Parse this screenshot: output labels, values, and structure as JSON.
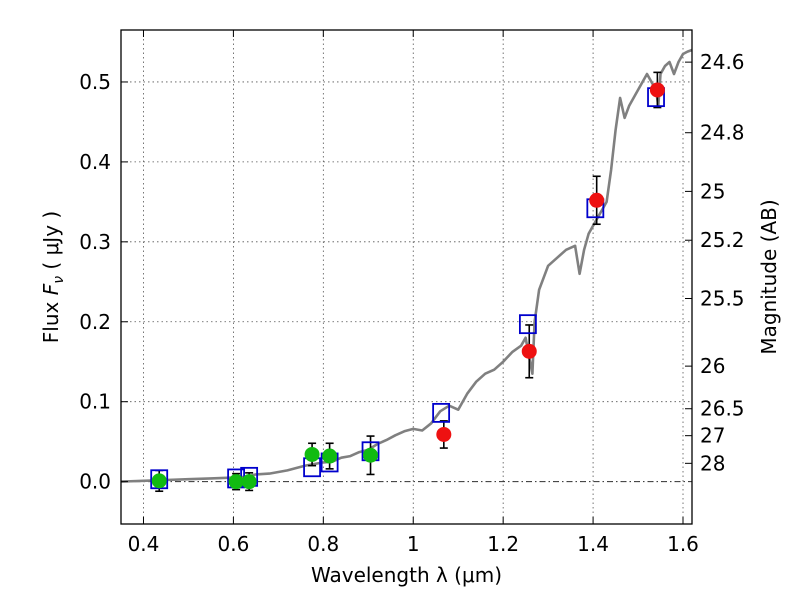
{
  "chart_data": {
    "type": "scatter",
    "xlabel": "Wavelength  λ (μm)",
    "ylabel": "Flux  F_ν  ( μJy )",
    "ylabel_right": "Magnitude (AB)",
    "xlim": [
      0.35,
      1.62
    ],
    "ylim": [
      -0.053,
      0.565
    ],
    "x_ticks": [
      {
        "value": 0.4,
        "label": "0.4"
      },
      {
        "value": 0.6,
        "label": "0.6"
      },
      {
        "value": 0.8,
        "label": "0.8"
      },
      {
        "value": 1.0,
        "label": "1"
      },
      {
        "value": 1.2,
        "label": "1.2"
      },
      {
        "value": 1.4,
        "label": "1.4"
      },
      {
        "value": 1.6,
        "label": "1.6"
      }
    ],
    "y_ticks": [
      {
        "value": 0.0,
        "label": "0.0"
      },
      {
        "value": 0.1,
        "label": "0.1"
      },
      {
        "value": 0.2,
        "label": "0.2"
      },
      {
        "value": 0.3,
        "label": "0.3"
      },
      {
        "value": 0.4,
        "label": "0.4"
      },
      {
        "value": 0.5,
        "label": "0.5"
      }
    ],
    "mag_ticks": [
      {
        "label": "24.6",
        "flux": 0.5248
      },
      {
        "label": "24.8",
        "flux": 0.4365
      },
      {
        "label": "25",
        "flux": 0.3631
      },
      {
        "label": "25.2",
        "flux": 0.302
      },
      {
        "label": "25.5",
        "flux": 0.2291
      },
      {
        "label": "26",
        "flux": 0.1445
      },
      {
        "label": "26.5",
        "flux": 0.0912
      },
      {
        "label": "27",
        "flux": 0.0575
      },
      {
        "label": "28",
        "flux": 0.0229
      }
    ],
    "grid": true,
    "zero_line": true,
    "colors": {
      "model": "#808080",
      "square": "#0000cc",
      "green": "#11bb11",
      "red": "#ee1111",
      "errorbar": "#000000"
    },
    "model_spectrum": [
      [
        0.35,
        0.0
      ],
      [
        0.4,
        0.001
      ],
      [
        0.45,
        0.002
      ],
      [
        0.5,
        0.003
      ],
      [
        0.55,
        0.004
      ],
      [
        0.6,
        0.005
      ],
      [
        0.63,
        0.006
      ],
      [
        0.65,
        0.009
      ],
      [
        0.68,
        0.01
      ],
      [
        0.7,
        0.012
      ],
      [
        0.72,
        0.014
      ],
      [
        0.74,
        0.017
      ],
      [
        0.76,
        0.02
      ],
      [
        0.78,
        0.022
      ],
      [
        0.8,
        0.024
      ],
      [
        0.82,
        0.025
      ],
      [
        0.84,
        0.03
      ],
      [
        0.86,
        0.032
      ],
      [
        0.88,
        0.037
      ],
      [
        0.9,
        0.04
      ],
      [
        0.92,
        0.047
      ],
      [
        0.94,
        0.052
      ],
      [
        0.96,
        0.058
      ],
      [
        0.98,
        0.063
      ],
      [
        1.0,
        0.066
      ],
      [
        1.02,
        0.064
      ],
      [
        1.04,
        0.073
      ],
      [
        1.06,
        0.088
      ],
      [
        1.08,
        0.095
      ],
      [
        1.1,
        0.09
      ],
      [
        1.12,
        0.11
      ],
      [
        1.14,
        0.125
      ],
      [
        1.16,
        0.135
      ],
      [
        1.18,
        0.14
      ],
      [
        1.2,
        0.15
      ],
      [
        1.22,
        0.162
      ],
      [
        1.24,
        0.17
      ],
      [
        1.25,
        0.18
      ],
      [
        1.26,
        0.15
      ],
      [
        1.265,
        0.135
      ],
      [
        1.27,
        0.2
      ],
      [
        1.28,
        0.24
      ],
      [
        1.3,
        0.27
      ],
      [
        1.32,
        0.28
      ],
      [
        1.34,
        0.29
      ],
      [
        1.36,
        0.295
      ],
      [
        1.37,
        0.26
      ],
      [
        1.38,
        0.29
      ],
      [
        1.39,
        0.31
      ],
      [
        1.4,
        0.32
      ],
      [
        1.41,
        0.33
      ],
      [
        1.42,
        0.34
      ],
      [
        1.43,
        0.35
      ],
      [
        1.44,
        0.39
      ],
      [
        1.45,
        0.44
      ],
      [
        1.46,
        0.48
      ],
      [
        1.47,
        0.455
      ],
      [
        1.48,
        0.47
      ],
      [
        1.49,
        0.48
      ],
      [
        1.5,
        0.49
      ],
      [
        1.51,
        0.5
      ],
      [
        1.52,
        0.51
      ],
      [
        1.53,
        0.5
      ],
      [
        1.54,
        0.49
      ],
      [
        1.545,
        0.47
      ],
      [
        1.55,
        0.51
      ],
      [
        1.56,
        0.52
      ],
      [
        1.57,
        0.525
      ],
      [
        1.58,
        0.51
      ],
      [
        1.59,
        0.525
      ],
      [
        1.6,
        0.535
      ],
      [
        1.61,
        0.538
      ],
      [
        1.62,
        0.54
      ]
    ],
    "model_photometry": [
      {
        "x": 0.435,
        "y": 0.003
      },
      {
        "x": 0.606,
        "y": 0.004
      },
      {
        "x": 0.635,
        "y": 0.006
      },
      {
        "x": 0.775,
        "y": 0.018
      },
      {
        "x": 0.814,
        "y": 0.024
      },
      {
        "x": 0.905,
        "y": 0.038
      },
      {
        "x": 1.062,
        "y": 0.086
      },
      {
        "x": 1.255,
        "y": 0.197
      },
      {
        "x": 1.405,
        "y": 0.342
      },
      {
        "x": 1.54,
        "y": 0.481
      }
    ],
    "observed_green": [
      {
        "x": 0.435,
        "y": 0.001,
        "err": 0.013
      },
      {
        "x": 0.606,
        "y": 0.0,
        "err": 0.01
      },
      {
        "x": 0.635,
        "y": 0.0,
        "err": 0.011
      },
      {
        "x": 0.775,
        "y": 0.034,
        "err": 0.014
      },
      {
        "x": 0.814,
        "y": 0.032,
        "err": 0.016
      },
      {
        "x": 0.905,
        "y": 0.033,
        "err": 0.024
      }
    ],
    "observed_red": [
      {
        "x": 1.068,
        "y": 0.059,
        "err": 0.017
      },
      {
        "x": 1.258,
        "y": 0.163,
        "err": 0.033
      },
      {
        "x": 1.408,
        "y": 0.352,
        "err": 0.03
      },
      {
        "x": 1.543,
        "y": 0.49,
        "err": 0.022
      }
    ]
  }
}
